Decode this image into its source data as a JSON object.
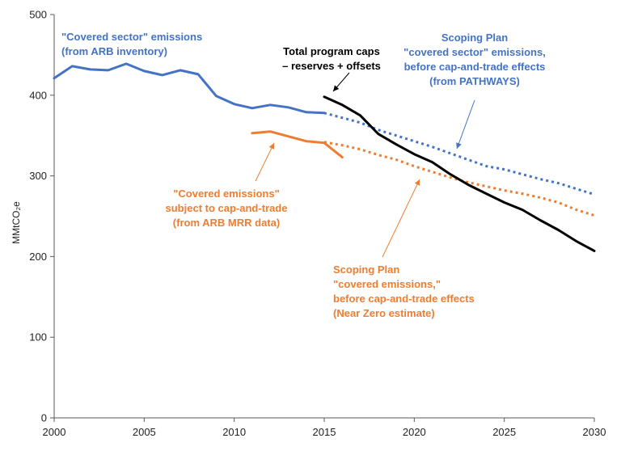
{
  "chart_data": {
    "type": "line",
    "xlim": [
      2000,
      2030
    ],
    "ylim": [
      0,
      500
    ],
    "xticks": [
      "2000",
      "2005",
      "2010",
      "2015",
      "2020",
      "2025",
      "2030"
    ],
    "yticks": [
      "0",
      "100",
      "200",
      "300",
      "400",
      "500"
    ],
    "ylabel": "MMtCO₂e",
    "grid": false,
    "series": [
      {
        "color": "#4472C4",
        "style": "solid",
        "points": [
          [
            2000,
            421
          ],
          [
            2001,
            436
          ],
          [
            2002,
            432
          ],
          [
            2003,
            431
          ],
          [
            2004,
            439
          ],
          [
            2005,
            430
          ],
          [
            2006,
            425
          ],
          [
            2007,
            431
          ],
          [
            2008,
            426
          ],
          [
            2009,
            399
          ],
          [
            2010,
            389
          ],
          [
            2011,
            384
          ],
          [
            2012,
            388
          ],
          [
            2013,
            385
          ],
          [
            2014,
            379
          ],
          [
            2015,
            378
          ]
        ]
      },
      {
        "color": "#4472C4",
        "style": "dotted",
        "points": [
          [
            2015,
            378
          ],
          [
            2016,
            372
          ],
          [
            2017,
            366
          ],
          [
            2018,
            357
          ],
          [
            2019,
            350
          ],
          [
            2020,
            343
          ],
          [
            2021,
            336
          ],
          [
            2022,
            328
          ],
          [
            2023,
            320
          ],
          [
            2024,
            312
          ],
          [
            2025,
            308
          ],
          [
            2026,
            302
          ],
          [
            2027,
            296
          ],
          [
            2028,
            291
          ],
          [
            2029,
            284
          ],
          [
            2030,
            277
          ]
        ]
      },
      {
        "color": "#ED7D31",
        "style": "solid",
        "points": [
          [
            2011,
            353
          ],
          [
            2012,
            355
          ],
          [
            2013,
            349
          ],
          [
            2014,
            343
          ],
          [
            2015,
            341
          ],
          [
            2016,
            323
          ]
        ]
      },
      {
        "color": "#ED7D31",
        "style": "dotted",
        "points": [
          [
            2015,
            342
          ],
          [
            2016,
            338
          ],
          [
            2017,
            333
          ],
          [
            2018,
            326
          ],
          [
            2019,
            320
          ],
          [
            2020,
            312
          ],
          [
            2021,
            305
          ],
          [
            2022,
            298
          ],
          [
            2023,
            292
          ],
          [
            2024,
            287
          ],
          [
            2025,
            282
          ],
          [
            2026,
            278
          ],
          [
            2027,
            273
          ],
          [
            2028,
            267
          ],
          [
            2029,
            258
          ],
          [
            2030,
            251
          ]
        ]
      },
      {
        "color": "#000000",
        "style": "solid",
        "points": [
          [
            2015,
            398
          ],
          [
            2016,
            388
          ],
          [
            2017,
            375
          ],
          [
            2018,
            352
          ],
          [
            2019,
            339
          ],
          [
            2020,
            327
          ],
          [
            2021,
            317
          ],
          [
            2022,
            302
          ],
          [
            2023,
            289
          ],
          [
            2024,
            278
          ],
          [
            2025,
            267
          ],
          [
            2026,
            258
          ],
          [
            2027,
            245
          ],
          [
            2028,
            233
          ],
          [
            2029,
            219
          ],
          [
            2030,
            207
          ]
        ]
      }
    ],
    "annotations": [
      {
        "lines": [
          "\"Covered sector\" emissions",
          "(from ARB inventory)"
        ],
        "color": "#4472C4"
      },
      {
        "lines": [
          "Total program caps",
          "– reserves + offsets"
        ],
        "color": "#000000"
      },
      {
        "lines": [
          "Scoping Plan",
          "\"covered sector\" emissions,",
          "before cap-and-trade effects",
          "(from PATHWAYS)"
        ],
        "color": "#4472C4"
      },
      {
        "lines": [
          "\"Covered emissions\"",
          "subject to cap-and-trade",
          "(from ARB MRR data)"
        ],
        "color": "#ED7D31"
      },
      {
        "lines": [
          "Scoping Plan",
          "\"covered emissions,\"",
          "before cap-and-trade effects",
          "(Near Zero estimate)"
        ],
        "color": "#ED7D31"
      }
    ]
  }
}
